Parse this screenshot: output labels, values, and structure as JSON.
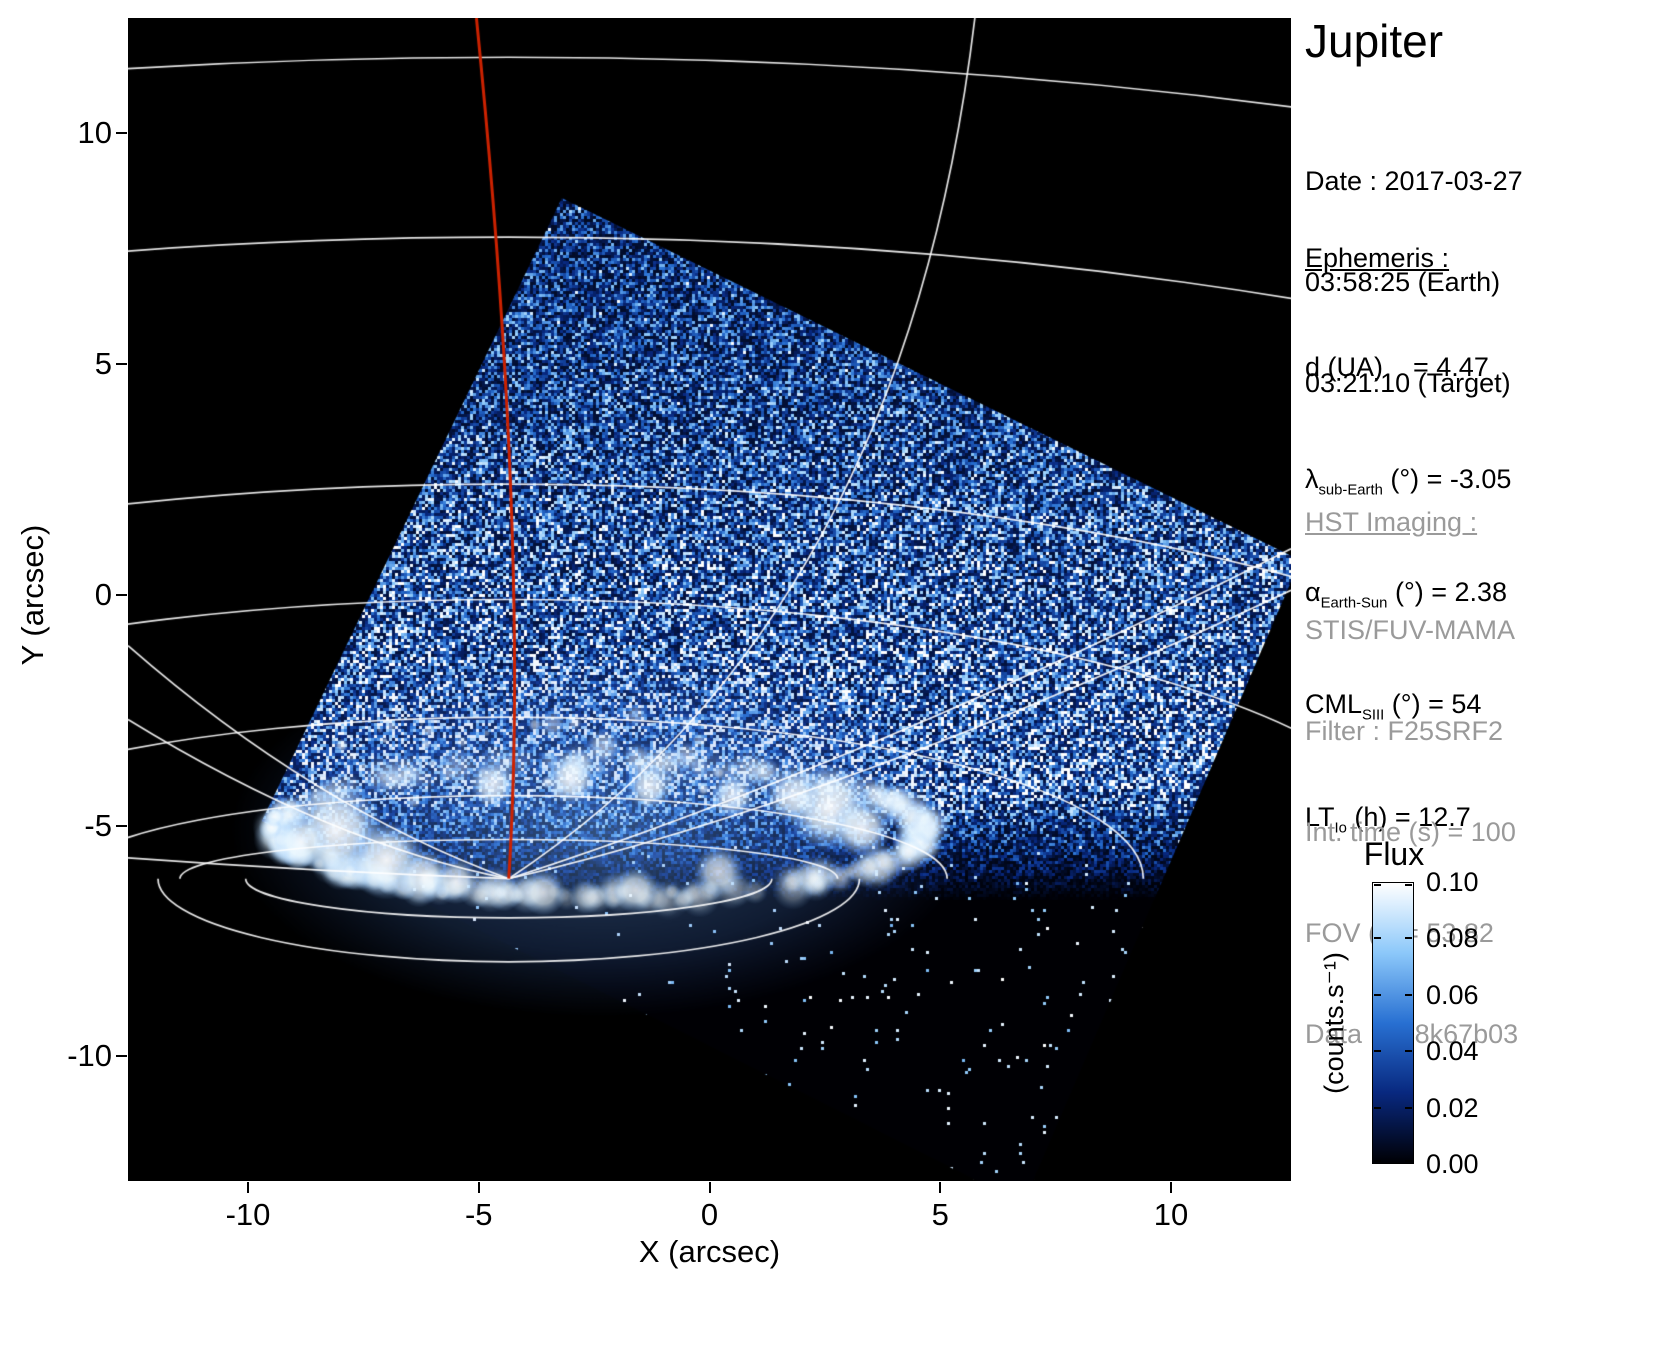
{
  "title": "Jupiter",
  "info": {
    "date_line": "Date : 2017-03-27",
    "time_earth": "03:58:25 (Earth)",
    "time_target": "03:21:10 (Target)",
    "ephemeris_heading": "Ephemeris :",
    "ephemeris": [
      {
        "base": "d (UA)",
        "sub": "",
        "rest": "    = 4.47"
      },
      {
        "base": "λ",
        "sub": "sub-Earth",
        "rest": " (°) = -3.05"
      },
      {
        "base": "α",
        "sub": "Earth-Sun",
        "rest": " (°) = 2.38"
      },
      {
        "base": "CML",
        "sub": "SIII",
        "rest": " (°) = 54"
      },
      {
        "base": "LT",
        "sub": "Io",
        "rest": " (h) = 12.7"
      }
    ],
    "hst_heading": "HST Imaging :",
    "hst_lines": [
      "STIS/FUV-MAMA",
      "Filter : F25SRF2",
      "Int. time (s) = 100",
      "FOV (\") = 53.82",
      "Data : od8k67b03"
    ]
  },
  "colorbar": {
    "title": "Flux",
    "unit": "(counts.s⁻¹)",
    "tick_labels": [
      "0.10",
      "0.08",
      "0.06",
      "0.04",
      "0.02",
      "0.00"
    ],
    "gradient": [
      "#ffffff",
      "#8cc8fa",
      "#2870d2",
      "#08287f",
      "#000004"
    ]
  },
  "chart_data": {
    "type": "heatmap",
    "title": "Jupiter",
    "xlabel": "X (arcsec)",
    "ylabel": "Y (arcsec)",
    "xlim": [
      -12.6,
      12.6
    ],
    "ylim": [
      -12.7,
      12.5
    ],
    "xticks": [
      -10,
      -5,
      0,
      5,
      10
    ],
    "yticks": [
      -10,
      -5,
      0,
      5,
      10
    ],
    "flux_min": 0.0,
    "flux_max": 0.1,
    "colorbar_ticks": [
      0.1,
      0.08,
      0.06,
      0.04,
      0.02,
      0.0
    ],
    "colormap_stops": [
      [
        0,
        "#000004"
      ],
      [
        0.25,
        "#08287f"
      ],
      [
        0.5,
        "#2870d2"
      ],
      [
        0.75,
        "#8cc8fa"
      ],
      [
        1,
        "#ffffff"
      ]
    ],
    "features": {
      "detector_quad": [
        [
          -3.2,
          8.6
        ],
        [
          12.8,
          0.75
        ],
        [
          6.8,
          -13.2
        ],
        [
          -9.7,
          -4.9
        ]
      ],
      "pole": [
        -4.35,
        -6.15
      ],
      "lat_ry": [
        17.8,
        13.9,
        8.55,
        6.05,
        3.5,
        1.8,
        0.85
      ],
      "lat_rx_factor": 2.5,
      "lat_rx_offset": 5,
      "lon_lines": [
        {
          "s": [
            5.75,
            12.5
          ],
          "c": [
            4.2,
            -0.5
          ]
        },
        {
          "s": [
            12.6,
            1.0
          ],
          "c": [
            3.5,
            -3.6
          ]
        },
        {
          "s": [
            12.6,
            0.1
          ],
          "c": [
            2.8,
            -4.5
          ]
        },
        {
          "s": [
            -12.6,
            -1.1
          ],
          "c": [
            -8.6,
            -4.6
          ]
        },
        {
          "s": [
            -12.6,
            -2.7
          ],
          "c": [
            -8.2,
            -5.4
          ]
        },
        {
          "s": [
            -12.6,
            -5.7
          ],
          "c": [
            -8.5,
            -6.0
          ]
        }
      ],
      "cml_line": {
        "s": [
          -5.05,
          12.5
        ],
        "c": [
          -3.9,
          1.0
        ],
        "color": "#cc2200"
      },
      "aurora": {
        "cx": -2.35,
        "cy": -5.1,
        "rx": 7.0,
        "ry": 1.45,
        "blobs": [
          [
            -8.1,
            -5.1,
            1.05,
            0.95
          ],
          [
            -7.0,
            -5.75,
            0.85,
            0.95
          ],
          [
            -8.85,
            -5.35,
            0.6,
            0.85
          ],
          [
            -6.2,
            -6.1,
            0.6,
            0.85
          ],
          [
            2.6,
            -4.6,
            0.95,
            0.95
          ],
          [
            3.3,
            -5.05,
            0.65,
            0.9
          ],
          [
            1.8,
            -4.35,
            0.6,
            0.85
          ],
          [
            -4.7,
            -4.1,
            0.5,
            0.85
          ],
          [
            -3.0,
            -4.0,
            0.55,
            0.9
          ],
          [
            -1.3,
            -4.15,
            0.5,
            0.85
          ],
          [
            0.5,
            -4.35,
            0.5,
            0.8
          ],
          [
            -5.5,
            -6.2,
            0.5,
            0.8
          ],
          [
            -3.6,
            -6.45,
            0.5,
            0.75
          ],
          [
            -1.6,
            -6.4,
            0.5,
            0.75
          ],
          [
            0.2,
            -6.0,
            0.55,
            0.75
          ],
          [
            -2.3,
            -3.3,
            0.4,
            0.55
          ],
          [
            -0.5,
            -3.5,
            0.33,
            0.5
          ],
          [
            -3.4,
            -2.8,
            0.3,
            0.45
          ],
          [
            1.2,
            -3.8,
            0.3,
            0.45
          ],
          [
            -1.6,
            -2.6,
            0.25,
            0.4
          ]
        ]
      }
    }
  }
}
